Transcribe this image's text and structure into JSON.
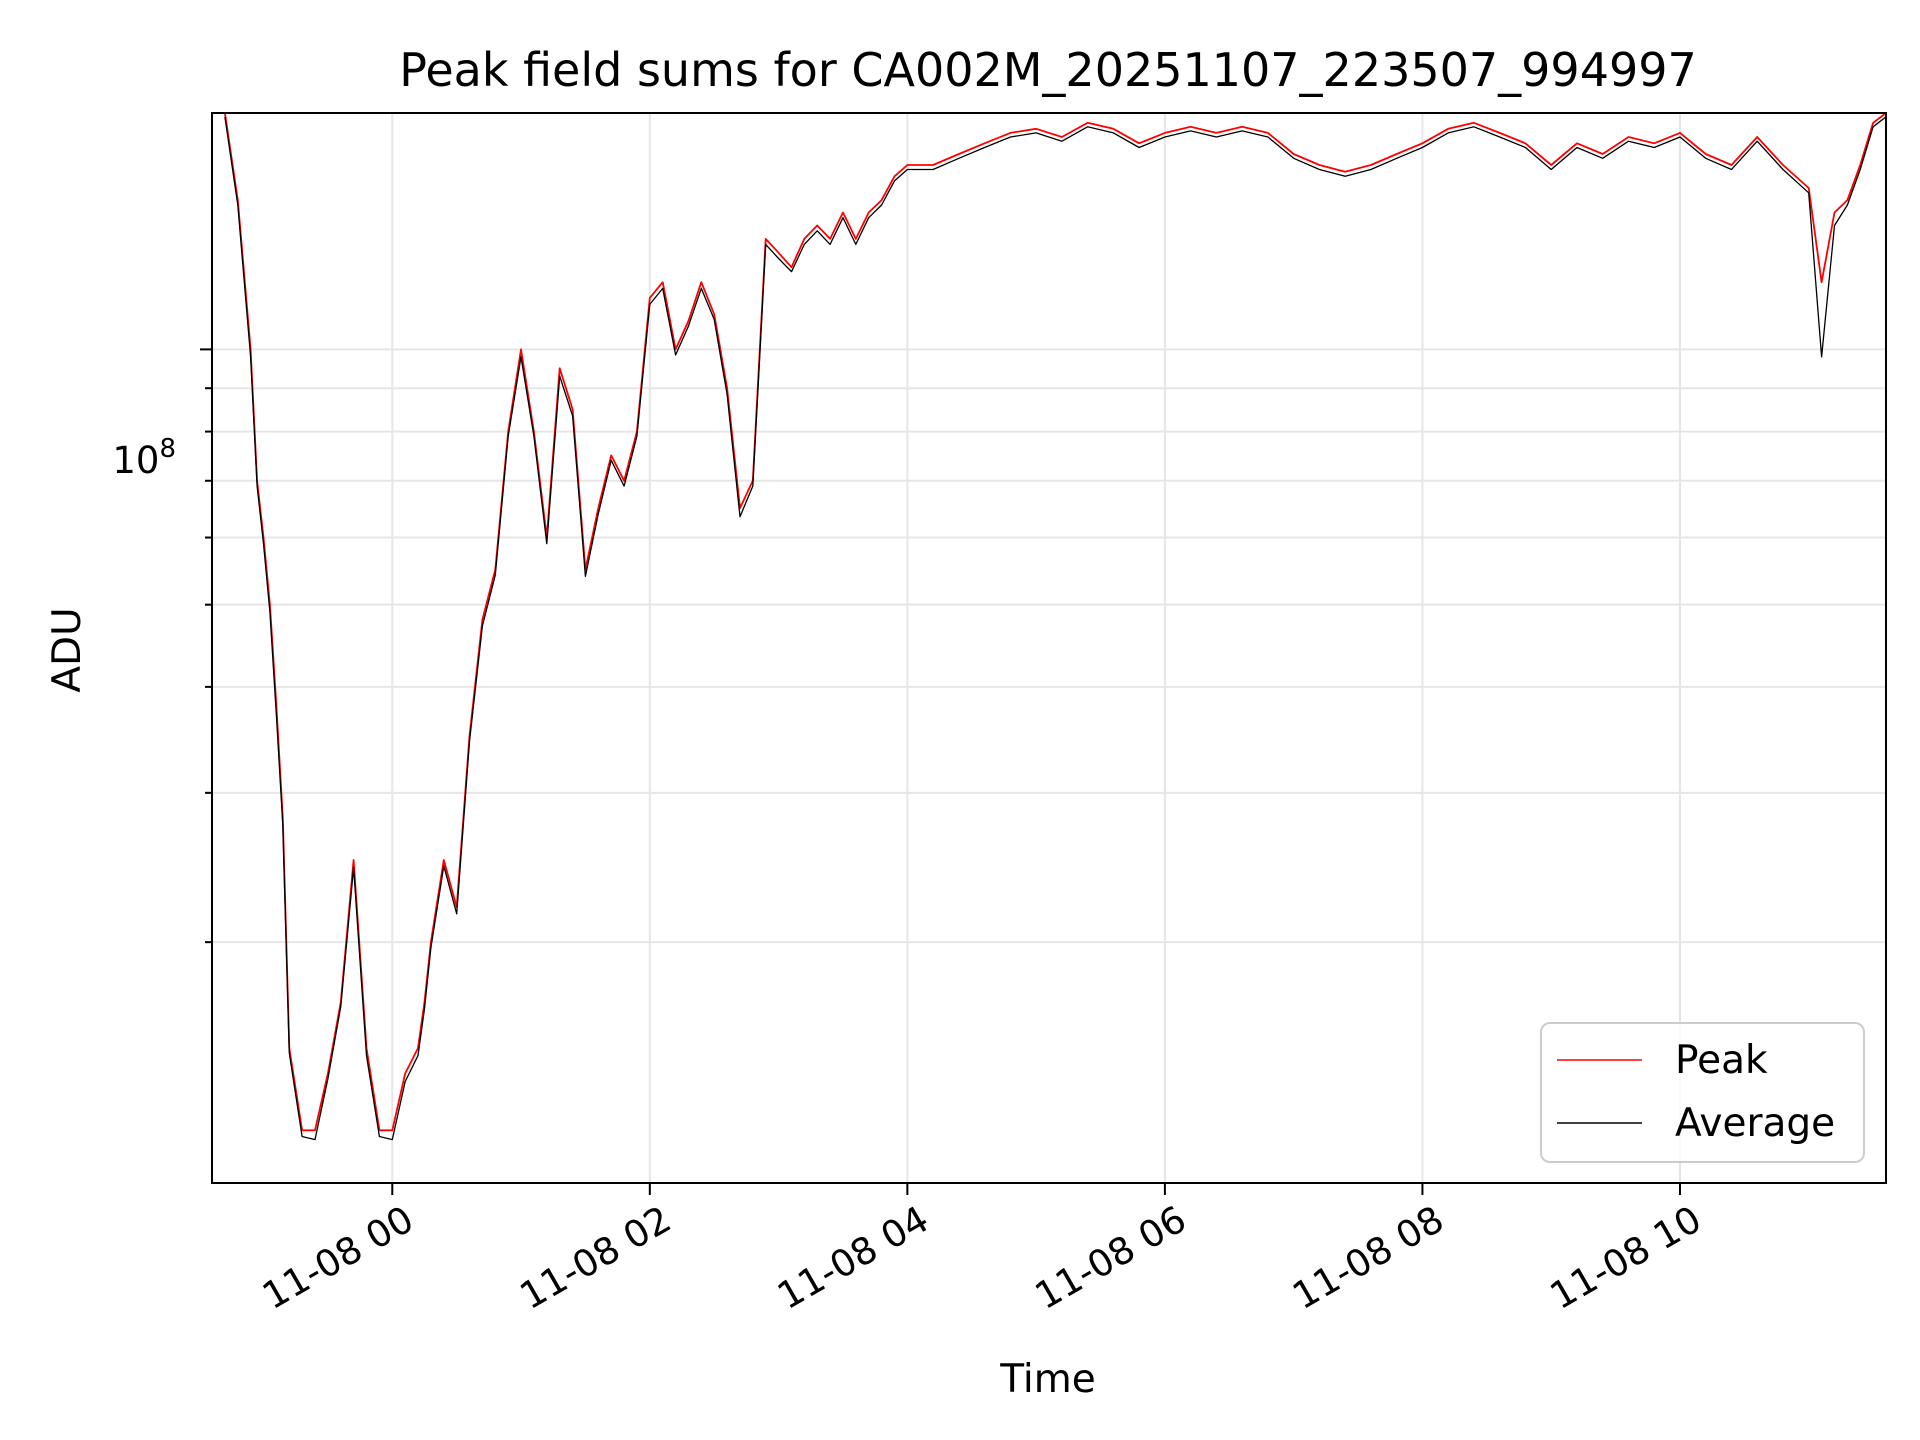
{
  "chart_data": {
    "type": "line",
    "title": "Peak field sums for CA002M_20251107_223507_994997",
    "xlabel": "Time",
    "ylabel": "ADU",
    "yscale": "log",
    "ylim": [
      10400000,
      190000000
    ],
    "xlim_hours": [
      -1.4,
      11.6
    ],
    "x_ticks": [
      {
        "hour": 0,
        "label": "11-08 00"
      },
      {
        "hour": 2,
        "label": "11-08 02"
      },
      {
        "hour": 4,
        "label": "11-08 04"
      },
      {
        "hour": 6,
        "label": "11-08 06"
      },
      {
        "hour": 8,
        "label": "11-08 08"
      },
      {
        "hour": 10,
        "label": "11-08 10"
      }
    ],
    "y_major_tick": {
      "base": "10",
      "exponent": "8",
      "value": 100000000
    },
    "y_minor_ticks": [
      20000000,
      30000000,
      40000000,
      50000000,
      60000000,
      70000000,
      80000000,
      90000000,
      200000000
    ],
    "grid": true,
    "legend_position": "lower-right",
    "series": [
      {
        "name": "Peak",
        "color": "#ff0000",
        "x": [
          -1.3,
          -1.2,
          -1.1,
          -1.05,
          -1.0,
          -0.95,
          -0.9,
          -0.85,
          -0.8,
          -0.7,
          -0.6,
          -0.5,
          -0.4,
          -0.3,
          -0.2,
          -0.1,
          0.0,
          0.1,
          0.2,
          0.25,
          0.3,
          0.4,
          0.5,
          0.6,
          0.7,
          0.8,
          0.9,
          1.0,
          1.1,
          1.2,
          1.3,
          1.4,
          1.5,
          1.6,
          1.7,
          1.8,
          1.9,
          2.0,
          2.1,
          2.2,
          2.3,
          2.4,
          2.5,
          2.6,
          2.7,
          2.8,
          2.9,
          3.0,
          3.1,
          3.2,
          3.3,
          3.4,
          3.5,
          3.6,
          3.7,
          3.8,
          3.9,
          4.0,
          4.2,
          4.4,
          4.6,
          4.8,
          5.0,
          5.2,
          5.4,
          5.6,
          5.8,
          6.0,
          6.2,
          6.4,
          6.6,
          6.8,
          7.0,
          7.2,
          7.4,
          7.6,
          7.8,
          8.0,
          8.2,
          8.4,
          8.6,
          8.8,
          9.0,
          9.2,
          9.4,
          9.6,
          9.8,
          10.0,
          10.2,
          10.4,
          10.6,
          10.8,
          11.0,
          11.1,
          11.2,
          11.3,
          11.4,
          11.5,
          11.6
        ],
        "values": [
          190000000,
          150000000,
          100000000,
          70000000,
          60000000,
          50000000,
          38000000,
          28000000,
          15000000,
          12000000,
          12000000,
          14000000,
          17000000,
          25000000,
          15000000,
          12000000,
          12000000,
          14000000,
          15000000,
          17000000,
          20000000,
          25000000,
          22000000,
          35000000,
          48000000,
          55000000,
          80000000,
          100000000,
          80000000,
          60000000,
          95000000,
          85000000,
          55000000,
          65000000,
          75000000,
          70000000,
          80000000,
          115000000,
          120000000,
          100000000,
          108000000,
          120000000,
          110000000,
          90000000,
          65000000,
          70000000,
          135000000,
          130000000,
          125000000,
          135000000,
          140000000,
          135000000,
          145000000,
          135000000,
          145000000,
          150000000,
          160000000,
          165000000,
          165000000,
          170000000,
          175000000,
          180000000,
          182000000,
          178000000,
          185000000,
          182000000,
          175000000,
          180000000,
          183000000,
          180000000,
          183000000,
          180000000,
          170000000,
          165000000,
          162000000,
          165000000,
          170000000,
          175000000,
          182000000,
          185000000,
          180000000,
          175000000,
          165000000,
          175000000,
          170000000,
          178000000,
          175000000,
          180000000,
          170000000,
          165000000,
          178000000,
          165000000,
          155000000,
          120000000,
          145000000,
          150000000,
          165000000,
          185000000,
          190000000
        ]
      },
      {
        "name": "Average",
        "color": "#000000",
        "x": [
          -1.3,
          -1.2,
          -1.1,
          -1.05,
          -1.0,
          -0.95,
          -0.9,
          -0.85,
          -0.8,
          -0.7,
          -0.6,
          -0.5,
          -0.4,
          -0.3,
          -0.2,
          -0.1,
          0.0,
          0.1,
          0.2,
          0.25,
          0.3,
          0.4,
          0.5,
          0.6,
          0.7,
          0.8,
          0.9,
          1.0,
          1.1,
          1.2,
          1.3,
          1.4,
          1.5,
          1.6,
          1.7,
          1.8,
          1.9,
          2.0,
          2.1,
          2.2,
          2.3,
          2.4,
          2.5,
          2.6,
          2.7,
          2.8,
          2.9,
          3.0,
          3.1,
          3.2,
          3.3,
          3.4,
          3.5,
          3.6,
          3.7,
          3.8,
          3.9,
          4.0,
          4.2,
          4.4,
          4.6,
          4.8,
          5.0,
          5.2,
          5.4,
          5.6,
          5.8,
          6.0,
          6.2,
          6.4,
          6.6,
          6.8,
          7.0,
          7.2,
          7.4,
          7.6,
          7.8,
          8.0,
          8.2,
          8.4,
          8.6,
          8.8,
          9.0,
          9.2,
          9.4,
          9.6,
          9.8,
          10.0,
          10.2,
          10.4,
          10.6,
          10.8,
          11.0,
          11.1,
          11.2,
          11.3,
          11.4,
          11.5,
          11.6
        ],
        "values": [
          188000000,
          148000000,
          98000000,
          69000000,
          59000000,
          49000000,
          37000000,
          27500000,
          14800000,
          11800000,
          11700000,
          13800000,
          16800000,
          24500000,
          14700000,
          11800000,
          11700000,
          13700000,
          14700000,
          16700000,
          19700000,
          24600000,
          21600000,
          34500000,
          47200000,
          54200000,
          79000000,
          98000000,
          79000000,
          59000000,
          93000000,
          83500000,
          54000000,
          64000000,
          74000000,
          69000000,
          79000000,
          113000000,
          118000000,
          98500000,
          106500000,
          118000000,
          108500000,
          88500000,
          63500000,
          69000000,
          133000000,
          128000000,
          123500000,
          133000000,
          138000000,
          133000000,
          143000000,
          133000000,
          143000000,
          148000000,
          158000000,
          163000000,
          163000000,
          168000000,
          173000000,
          178000000,
          180000000,
          176000000,
          183000000,
          180000000,
          173000000,
          178000000,
          181000000,
          178000000,
          181000000,
          178000000,
          168000000,
          163000000,
          160000000,
          163000000,
          168000000,
          173000000,
          180000000,
          183000000,
          178000000,
          173000000,
          163000000,
          173000000,
          168000000,
          176000000,
          173000000,
          178000000,
          168000000,
          163000000,
          176000000,
          163000000,
          153000000,
          98000000,
          140000000,
          148000000,
          163000000,
          183000000,
          188000000
        ]
      }
    ]
  }
}
